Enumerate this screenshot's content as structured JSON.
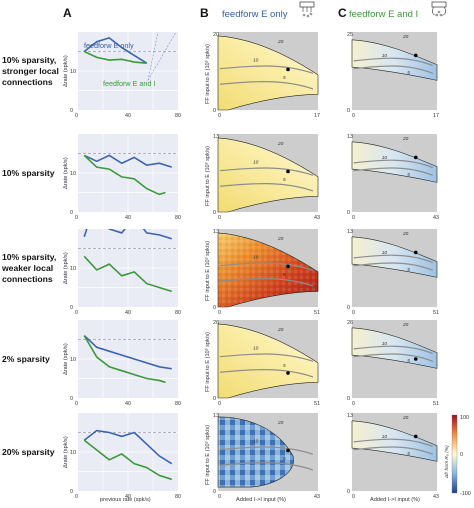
{
  "panel_letters": [
    "A",
    "B",
    "C"
  ],
  "column_titles": {
    "b": "feedforw E only",
    "c": "feedforw E and I"
  },
  "legend": {
    "e_only": "feedforw E only",
    "e_and_i": "feedforw E and I"
  },
  "rows": [
    {
      "label": [
        "10% sparsity,",
        "stronger local",
        "connections"
      ]
    },
    {
      "label": [
        "10% sparsity"
      ]
    },
    {
      "label": [
        "10% sparsity,",
        "weaker local",
        "connections"
      ]
    },
    {
      "label": [
        "2% sparsity"
      ]
    },
    {
      "label": [
        "20% sparsity"
      ]
    }
  ],
  "axis": {
    "a_ylabel": "Δrate (spk/s)",
    "a_xlabel": "previous rate (spk/s)",
    "b_ylabel": "FF input to E (10³ spk/s)",
    "bc_xlabel": "Added I->I input (%)"
  },
  "colorbar": {
    "label": "Δfr from R₀ (%)",
    "max": "100",
    "mid": "0",
    "min": "-100"
  },
  "contour_labels": [
    "20",
    "10",
    "5"
  ],
  "heatmap_ticks": {
    "b": [
      {
        "y0": "0",
        "y1": "20",
        "x0": "0",
        "x1": "17"
      },
      {
        "y0": "0",
        "y1": "13",
        "x0": "0",
        "x1": "43"
      },
      {
        "y0": "0",
        "y1": "13",
        "x0": "0",
        "x1": "51"
      },
      {
        "y0": "0",
        "y1": "26",
        "x0": "0",
        "x1": "51"
      },
      {
        "y0": "0",
        "y1": "13",
        "x0": "0",
        "x1": "43"
      }
    ],
    "c": [
      {
        "y0": "0",
        "y1": "25",
        "x0": "0",
        "x1": "17"
      },
      {
        "y0": "0",
        "y1": "13",
        "x0": "0",
        "x1": "43"
      },
      {
        "y0": "0",
        "y1": "13",
        "x0": "0",
        "x1": "51"
      },
      {
        "y0": "0",
        "y1": "26",
        "x0": "0",
        "x1": "51"
      },
      {
        "y0": "0",
        "y1": "13",
        "x0": "0",
        "x1": "43"
      }
    ]
  },
  "colors": {
    "blue": "#3b63b0",
    "green": "#3a9a3a",
    "panel_bg": "#e9ebf5",
    "grey": "#cdcdcd",
    "dashed": "#9a9ab5"
  },
  "chart_data": [
    {
      "type": "line",
      "xlim": [
        0,
        80
      ],
      "ylim": [
        0,
        20
      ],
      "xticks": [
        0,
        40,
        80
      ],
      "yticks": [
        0,
        10
      ],
      "dashed_y": 15,
      "series": [
        {
          "name": "feedforw E only",
          "x": [
            5,
            15,
            25,
            35,
            45,
            55
          ],
          "y": [
            15,
            17.5,
            18.5,
            16,
            14,
            12
          ]
        },
        {
          "name": "feedforw E and I",
          "x": [
            5,
            15,
            25,
            35,
            45,
            55
          ],
          "y": [
            15,
            13.5,
            12.8,
            13,
            12.3,
            12
          ]
        }
      ]
    },
    {
      "type": "line",
      "xlim": [
        0,
        80
      ],
      "ylim": [
        0,
        20
      ],
      "xticks": [
        0,
        40,
        80
      ],
      "yticks": [
        0,
        10
      ],
      "dashed_y": 15,
      "series": [
        {
          "name": "feedforw E only",
          "x": [
            5,
            15,
            25,
            35,
            45,
            55,
            65,
            75
          ],
          "y": [
            14.5,
            13,
            14.5,
            12.5,
            14,
            12,
            12.5,
            11.5
          ]
        },
        {
          "name": "feedforw E and I",
          "x": [
            5,
            15,
            25,
            35,
            45,
            55,
            65,
            70
          ],
          "y": [
            14.5,
            11.5,
            11,
            9,
            8.5,
            6,
            4.5,
            5
          ]
        }
      ]
    },
    {
      "type": "line",
      "xlim": [
        0,
        80
      ],
      "ylim": [
        0,
        20
      ],
      "xticks": [
        0,
        40,
        80
      ],
      "yticks": [
        0,
        10
      ],
      "dashed_y": 15,
      "series": [
        {
          "name": "feedforw E only",
          "x": [
            5,
            15,
            25,
            35,
            45,
            55,
            65,
            75
          ],
          "y": [
            18,
            28,
            20,
            19,
            23,
            19,
            18.5,
            17.5
          ]
        },
        {
          "name": "feedforw E and I",
          "x": [
            5,
            15,
            25,
            35,
            45,
            55,
            65,
            75
          ],
          "y": [
            13,
            9.5,
            11,
            8,
            9,
            6,
            5,
            4
          ]
        }
      ]
    },
    {
      "type": "line",
      "xlim": [
        0,
        80
      ],
      "ylim": [
        0,
        20
      ],
      "xticks": [
        0,
        40,
        80
      ],
      "yticks": [
        0,
        10
      ],
      "dashed_y": 15,
      "series": [
        {
          "name": "feedforw E only",
          "x": [
            5,
            15,
            25,
            35,
            45,
            55,
            65,
            75
          ],
          "y": [
            16,
            13,
            12,
            11,
            10,
            9,
            8,
            7.5
          ]
        },
        {
          "name": "feedforw E and I",
          "x": [
            5,
            15,
            25,
            35,
            45,
            55,
            65,
            70
          ],
          "y": [
            16,
            10.5,
            8,
            7,
            6,
            5,
            4.5,
            4
          ]
        }
      ]
    },
    {
      "type": "line",
      "xlim": [
        0,
        80
      ],
      "ylim": [
        0,
        20
      ],
      "xticks": [
        0,
        40,
        80
      ],
      "yticks": [
        0,
        10
      ],
      "dashed_y": 15,
      "series": [
        {
          "name": "feedforw E only",
          "x": [
            5,
            15,
            25,
            35,
            45,
            55,
            65,
            75
          ],
          "y": [
            13,
            15.5,
            15,
            14,
            15,
            12,
            9,
            7
          ]
        },
        {
          "name": "feedforw E and I",
          "x": [
            5,
            15,
            25,
            35,
            45,
            55,
            65,
            75
          ],
          "y": [
            13,
            10.5,
            8,
            9.5,
            7,
            6,
            4,
            3
          ]
        }
      ]
    }
  ]
}
